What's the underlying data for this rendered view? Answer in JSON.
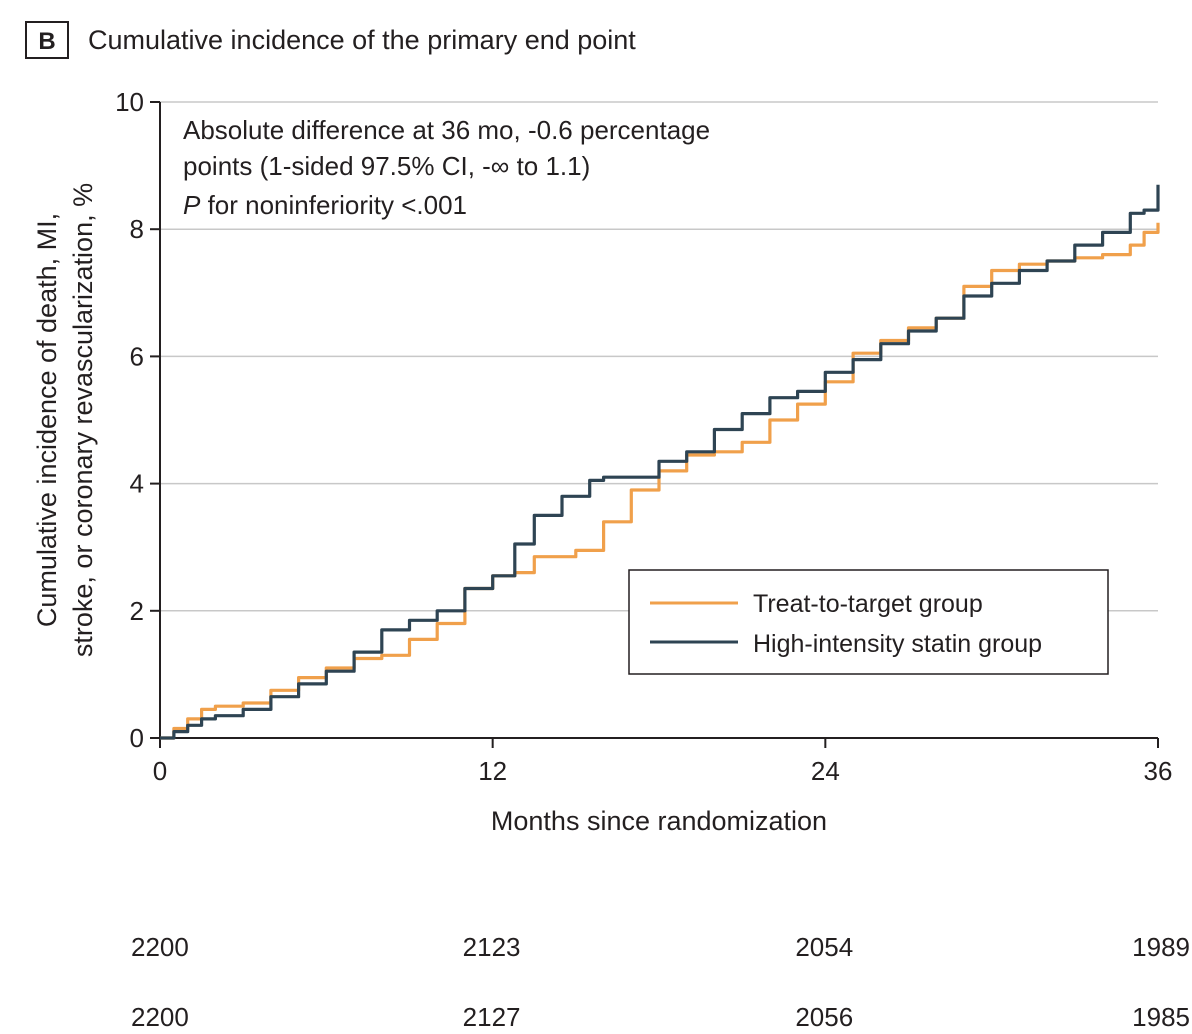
{
  "panel_label": "B",
  "chart_data": {
    "type": "line",
    "title": "Cumulative incidence of the primary end point",
    "xlabel": "Months since randomization",
    "ylabel_lines": [
      "Cumulative incidence of death, MI,",
      "stroke, or coronary revascularization, %"
    ],
    "xlim": [
      0,
      36
    ],
    "ylim": [
      0,
      10
    ],
    "x_ticks": [
      0,
      12,
      24,
      36
    ],
    "y_ticks": [
      0,
      2,
      4,
      6,
      8,
      10
    ],
    "grid": "horizontal",
    "legend_position": "bottom-right",
    "annotation": {
      "line1": "Absolute difference at 36 mo, -0.6 percentage",
      "line2": "points (1-sided 97.5% CI, -∞ to 1.1)",
      "line3_italic": "P",
      "line3_rest": " for noninferiority <.001"
    },
    "series": [
      {
        "name": "Treat-to-target group",
        "color": "#f0a04b",
        "x": [
          0,
          0.5,
          1,
          1.5,
          2,
          3,
          4,
          5,
          6,
          7,
          8,
          9,
          10,
          11,
          12,
          12.8,
          13.5,
          15,
          16,
          17,
          18,
          19,
          20,
          21,
          22,
          23,
          24,
          25,
          26,
          27,
          28,
          29,
          30,
          31,
          32,
          33,
          34,
          35,
          35.5,
          36
        ],
        "y": [
          0,
          0.15,
          0.3,
          0.45,
          0.5,
          0.55,
          0.75,
          0.95,
          1.1,
          1.25,
          1.3,
          1.55,
          1.8,
          2.35,
          2.55,
          2.6,
          2.85,
          2.95,
          3.4,
          3.9,
          4.2,
          4.45,
          4.5,
          4.65,
          5.0,
          5.25,
          5.6,
          6.05,
          6.25,
          6.45,
          6.6,
          7.1,
          7.35,
          7.45,
          7.5,
          7.55,
          7.6,
          7.75,
          7.95,
          8.1
        ]
      },
      {
        "name": "High-intensity statin group",
        "color": "#2e4453",
        "x": [
          0,
          0.5,
          1,
          1.5,
          2,
          3,
          4,
          5,
          6,
          7,
          8,
          9,
          10,
          11,
          12,
          12.8,
          13.5,
          14.5,
          15.5,
          16,
          17,
          18,
          19,
          20,
          21,
          22,
          23,
          24,
          25,
          26,
          27,
          28,
          29,
          30,
          31,
          32,
          33,
          34,
          35,
          35.5,
          36
        ],
        "y": [
          0,
          0.1,
          0.2,
          0.3,
          0.35,
          0.45,
          0.65,
          0.85,
          1.05,
          1.35,
          1.7,
          1.85,
          2.0,
          2.35,
          2.55,
          3.05,
          3.5,
          3.8,
          4.05,
          4.1,
          4.1,
          4.35,
          4.5,
          4.85,
          5.1,
          5.35,
          5.45,
          5.75,
          5.95,
          6.2,
          6.4,
          6.6,
          6.95,
          7.15,
          7.35,
          7.5,
          7.75,
          7.95,
          8.25,
          8.3,
          8.7
        ]
      }
    ],
    "at_risk": [
      {
        "values": [
          "2200",
          "2123",
          "2054",
          "1989"
        ]
      },
      {
        "values": [
          "2200",
          "2127",
          "2056",
          "1985"
        ]
      }
    ]
  }
}
